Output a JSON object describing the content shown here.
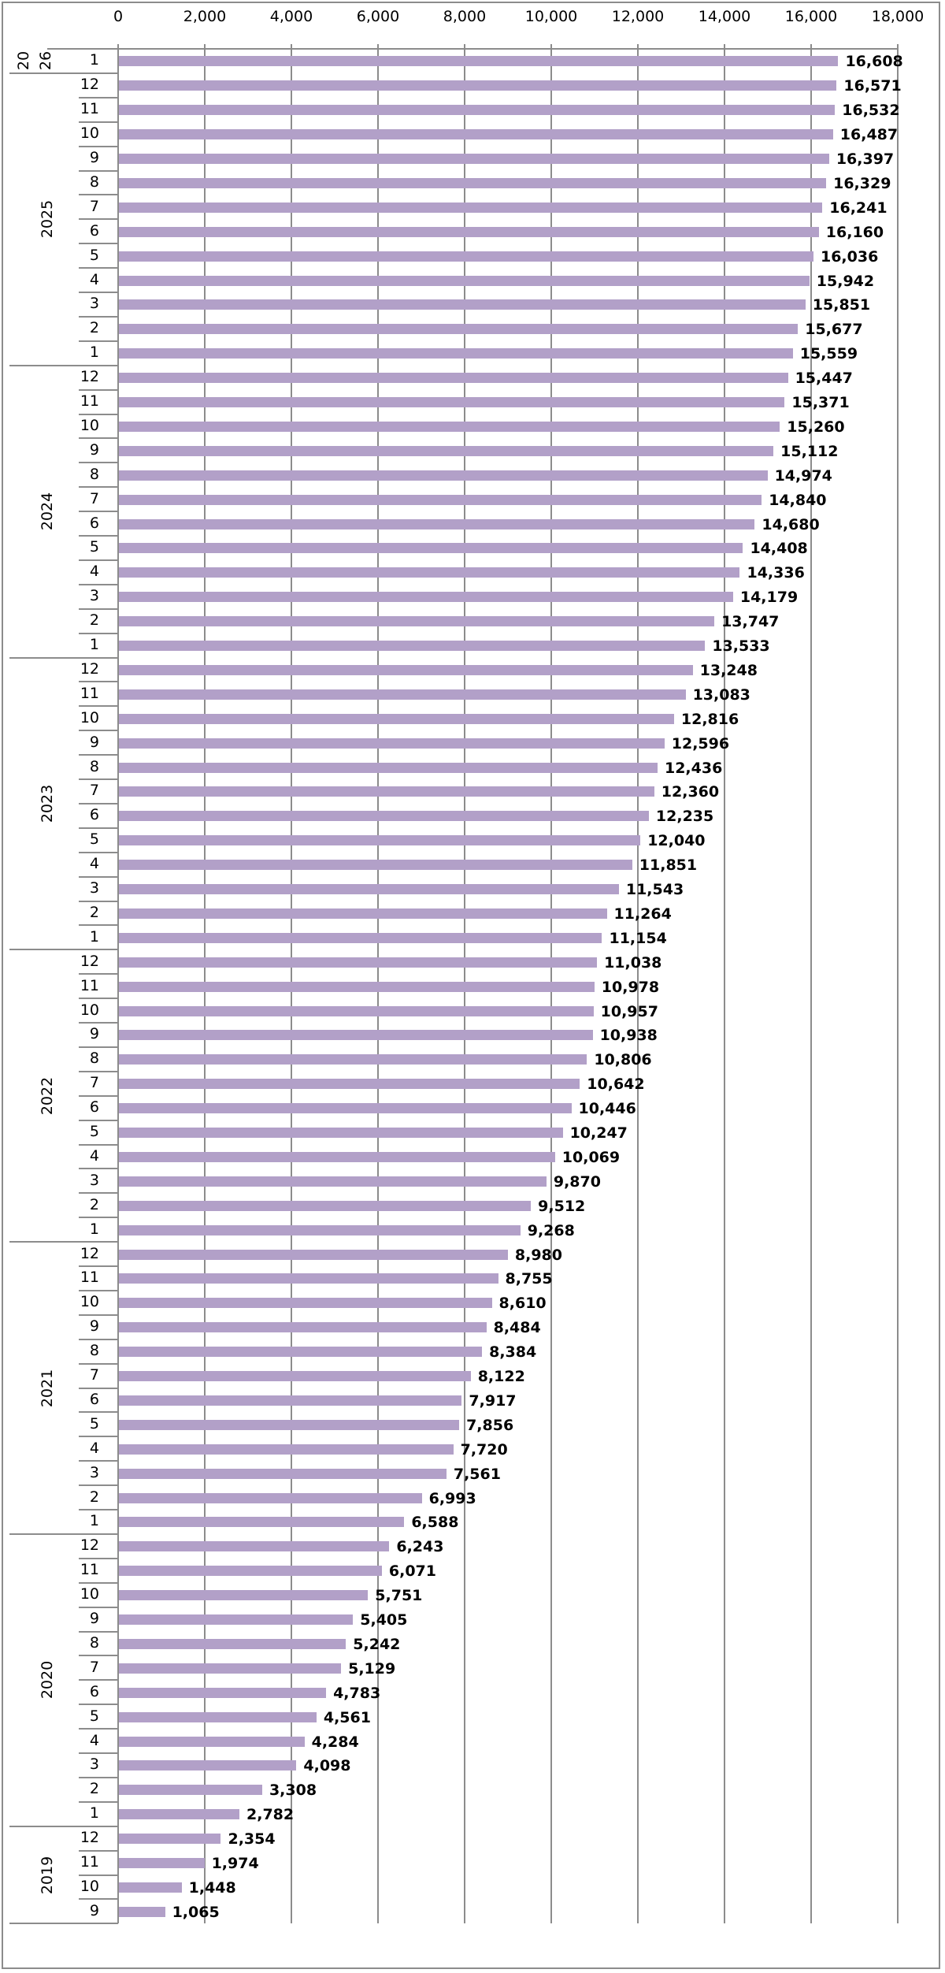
{
  "chart_data": {
    "type": "bar",
    "orientation": "horizontal",
    "title": "",
    "xlabel": "",
    "ylabel": "",
    "xlim": [
      0,
      18000
    ],
    "x_ticks": [
      "0",
      "2,000",
      "4,000",
      "6,000",
      "8,000",
      "10,000",
      "12,000",
      "14,000",
      "16,000",
      "18,000"
    ],
    "grid": true,
    "legend": null,
    "bar_color": "#b2a0c8",
    "groups": [
      {
        "year": "2026",
        "label_lines": [
          "20",
          "26"
        ],
        "months": [
          1
        ],
        "values": [
          16608
        ]
      },
      {
        "year": "2025",
        "months": [
          12,
          11,
          10,
          9,
          8,
          7,
          6,
          5,
          4,
          3,
          2,
          1
        ],
        "values": [
          16571,
          16532,
          16487,
          16397,
          16329,
          16241,
          16160,
          16036,
          15942,
          15851,
          15677,
          15559
        ]
      },
      {
        "year": "2024",
        "months": [
          12,
          11,
          10,
          9,
          8,
          7,
          6,
          5,
          4,
          3,
          2,
          1
        ],
        "values": [
          15447,
          15371,
          15260,
          15112,
          14974,
          14840,
          14680,
          14408,
          14336,
          14179,
          13747,
          13533
        ]
      },
      {
        "year": "2023",
        "months": [
          12,
          11,
          10,
          9,
          8,
          7,
          6,
          5,
          4,
          3,
          2,
          1
        ],
        "values": [
          13248,
          13083,
          12816,
          12596,
          12436,
          12360,
          12235,
          12040,
          11851,
          11543,
          11264,
          11154
        ]
      },
      {
        "year": "2022",
        "months": [
          12,
          11,
          10,
          9,
          8,
          7,
          6,
          5,
          4,
          3,
          2,
          1
        ],
        "values": [
          11038,
          10978,
          10957,
          10938,
          10806,
          10642,
          10446,
          10247,
          10069,
          9870,
          9512,
          9268
        ]
      },
      {
        "year": "2021",
        "months": [
          12,
          11,
          10,
          9,
          8,
          7,
          6,
          5,
          4,
          3,
          2,
          1
        ],
        "values": [
          8980,
          8755,
          8610,
          8484,
          8384,
          8122,
          7917,
          7856,
          7720,
          7561,
          6993,
          6588
        ]
      },
      {
        "year": "2020",
        "months": [
          12,
          11,
          10,
          9,
          8,
          7,
          6,
          5,
          4,
          3,
          2,
          1
        ],
        "values": [
          6243,
          6071,
          5751,
          5405,
          5242,
          5129,
          4783,
          4561,
          4284,
          4098,
          3308,
          2782
        ]
      },
      {
        "year": "2019",
        "months": [
          12,
          11,
          10,
          9
        ],
        "values": [
          2354,
          1974,
          1448,
          1065
        ]
      }
    ]
  }
}
